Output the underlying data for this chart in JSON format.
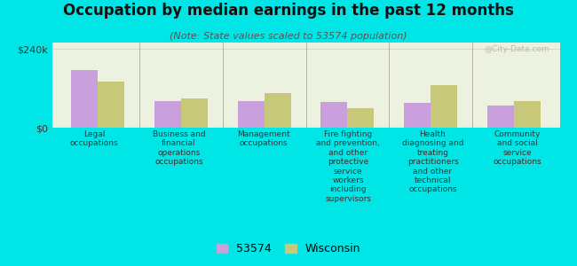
{
  "title": "Occupation by median earnings in the past 12 months",
  "subtitle": "(Note: State values scaled to 53574 population)",
  "categories": [
    "Legal\noccupations",
    "Business and\nfinancial\noperations\noccupations",
    "Management\noccupations",
    "Fire fighting\nand prevention,\nand other\nprotective\nservice\nworkers\nincluding\nsupervisors",
    "Health\ndiagnosing and\ntreating\npractitioners\nand other\ntechnical\noccupations",
    "Community\nand social\nservice\noccupations"
  ],
  "series_53574": [
    175000,
    80000,
    82000,
    78000,
    75000,
    68000
  ],
  "series_wisconsin": [
    140000,
    90000,
    105000,
    60000,
    130000,
    80000
  ],
  "color_53574": "#c9a0dc",
  "color_wisconsin": "#c8c87a",
  "bar_width": 0.32,
  "ylim": [
    0,
    260000
  ],
  "yticks": [
    0,
    240000
  ],
  "ytick_labels": [
    "$0",
    "$240k"
  ],
  "background_color": "#00e5e5",
  "plot_bg_color": "#edf2e0",
  "legend_label_53574": "53574",
  "legend_label_wisconsin": "Wisconsin",
  "watermark": "@City-Data.com",
  "title_fontsize": 12,
  "subtitle_fontsize": 8,
  "tick_label_fontsize": 6.5
}
